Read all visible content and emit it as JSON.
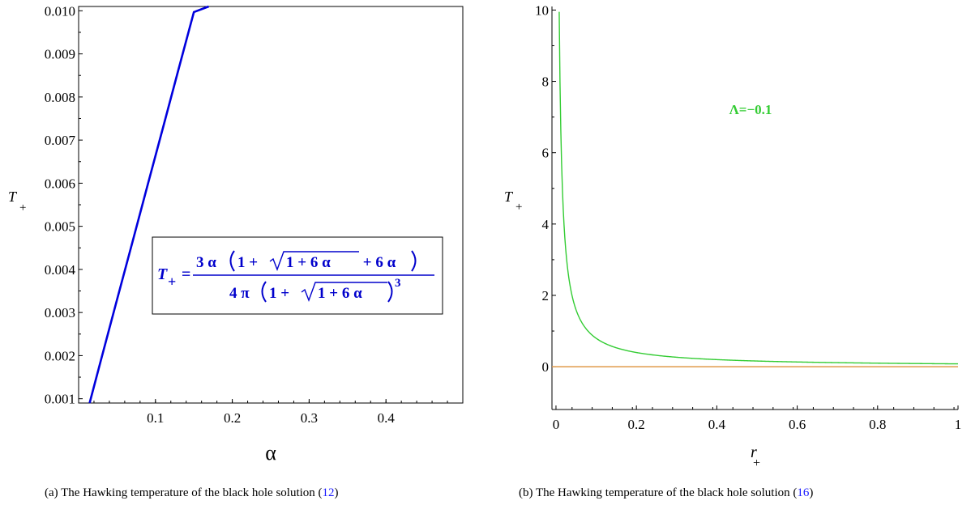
{
  "chart_data": [
    {
      "type": "line",
      "title": "",
      "xlabel": "α",
      "ylabel": "T",
      "ylabel_sub": "+",
      "xlim": [
        0.0,
        0.5
      ],
      "ylim": [
        0.0009,
        0.0101
      ],
      "xticks": [
        0.1,
        0.2,
        0.3,
        0.4
      ],
      "xtick_labels": [
        "0.1",
        "0.2",
        "0.3",
        "0.4"
      ],
      "yticks": [
        0.001,
        0.002,
        0.003,
        0.004,
        0.005,
        0.006,
        0.007,
        0.008,
        0.009,
        0.01
      ],
      "ytick_labels": [
        "0.001",
        "0.002",
        "0.003",
        "0.004",
        "0.005",
        "0.006",
        "0.007",
        "0.008",
        "0.009",
        "0.010"
      ],
      "grid": false,
      "series": [
        {
          "color": "#0000dd",
          "x": [
            0.0143,
            0.03,
            0.05,
            0.07,
            0.09,
            0.11,
            0.13,
            0.15,
            0.1693
          ],
          "y": [
            0.0009,
            0.00196,
            0.0033,
            0.00463,
            0.00597,
            0.0073,
            0.00864,
            0.00997,
            0.0101
          ]
        }
      ],
      "annotation": {
        "lhs": "T",
        "lhs_sub": "+",
        "equals": "=",
        "numerator": {
          "coef": "3 α",
          "inner_left": "1 + ",
          "radicand": "1 + 6 α",
          "inner_right": " + 6 α"
        },
        "denominator": {
          "coef": "4 π",
          "inner_left": "1 + ",
          "radicand": "1 + 6 α",
          "power": "3"
        }
      },
      "caption": {
        "text": "(a) The Hawking temperature of the black hole solution (",
        "ref": "12",
        "close": ")"
      }
    },
    {
      "type": "line",
      "title": "",
      "xlabel": "r",
      "xlabel_sub": "+",
      "ylabel": "T",
      "ylabel_sub": "+",
      "xlim": [
        -0.01,
        1.0
      ],
      "ylim": [
        -1.2,
        10.1
      ],
      "xticks": [
        0,
        0.2,
        0.4,
        0.6,
        0.8,
        1
      ],
      "xtick_labels": [
        "0",
        "0.2",
        "0.4",
        "0.6",
        "0.8",
        "1"
      ],
      "yticks": [
        0,
        2,
        4,
        6,
        8,
        10
      ],
      "ytick_labels": [
        "0",
        "2",
        "4",
        "6",
        "8",
        "10"
      ],
      "grid": false,
      "series": [
        {
          "name": "Λ=−0.1",
          "color": "#33cc33",
          "x": [
            0.008,
            0.01,
            0.015,
            0.02,
            0.03,
            0.04,
            0.05,
            0.06,
            0.08,
            0.1,
            0.12,
            0.15,
            0.2,
            0.25,
            0.3,
            0.4,
            0.5,
            0.6,
            0.7,
            0.8,
            0.9,
            1.0
          ],
          "y": [
            10.1,
            7.96,
            5.3,
            3.98,
            2.65,
            1.99,
            1.59,
            1.33,
            0.99,
            0.8,
            0.66,
            0.53,
            0.4,
            0.32,
            0.27,
            0.2,
            0.16,
            0.13,
            0.11,
            0.1,
            0.09,
            0.08
          ]
        },
        {
          "color": "#e09a4a",
          "x": [
            -0.01,
            1.0
          ],
          "y": [
            0,
            0
          ]
        }
      ],
      "legend_label": "Λ=−0.1",
      "legend_color": "#33cc33",
      "caption": {
        "text": "(b) The Hawking temperature of the black hole solution (",
        "ref": "16",
        "close": ")"
      }
    }
  ]
}
